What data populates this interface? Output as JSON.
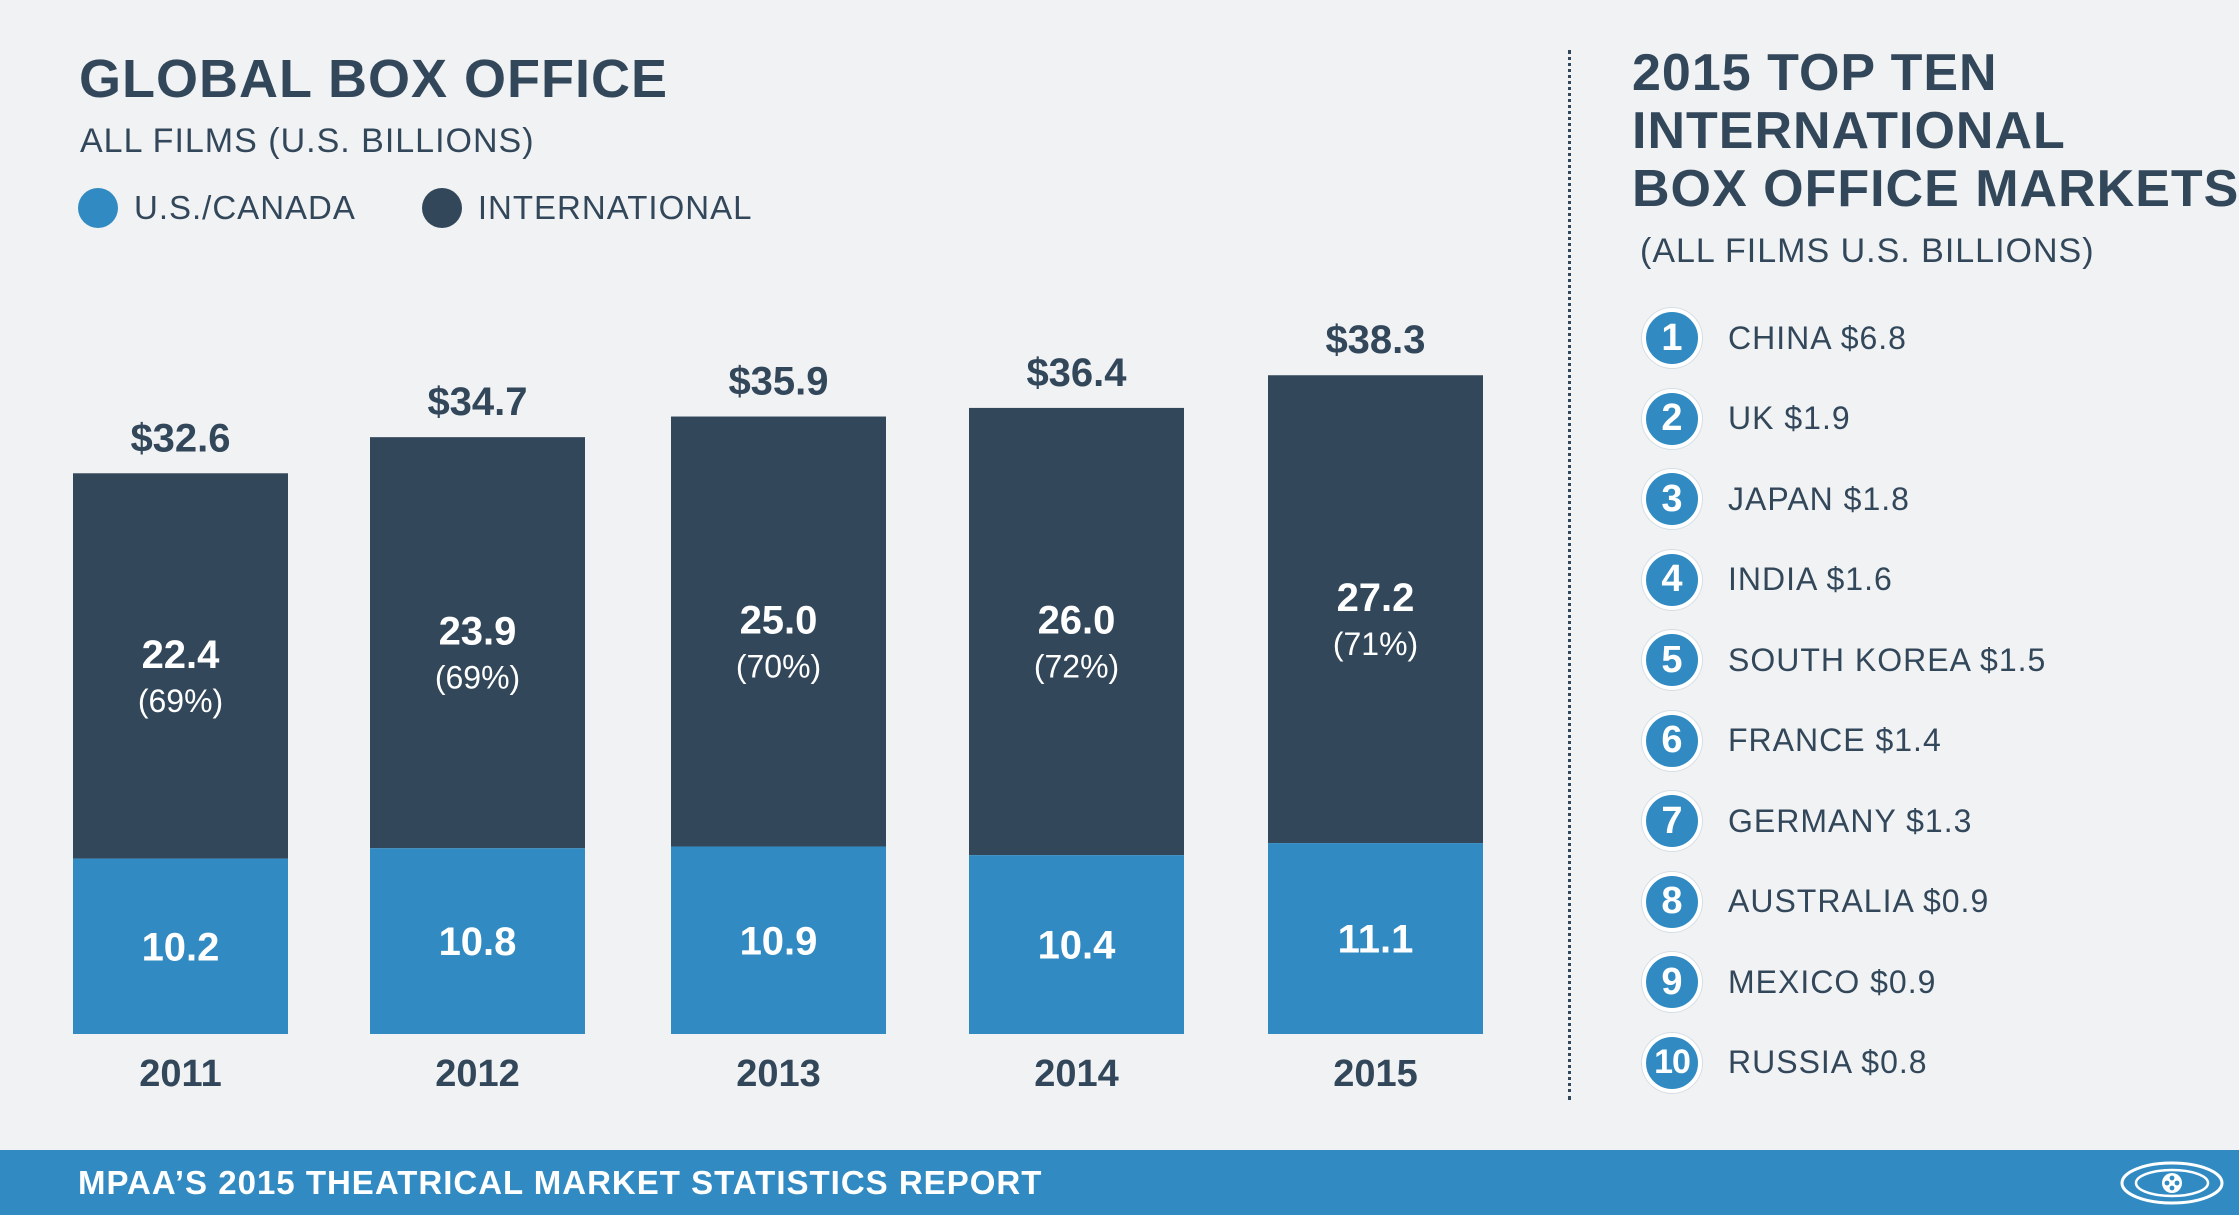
{
  "left_panel": {
    "title": "GLOBAL BOX OFFICE",
    "subtitle": "ALL FILMS (U.S. BILLIONS)",
    "legend": [
      {
        "label": "U.S./CANADA",
        "color": "#318bc2"
      },
      {
        "label": "INTERNATIONAL",
        "color": "#33475b"
      }
    ]
  },
  "chart_data": {
    "type": "bar",
    "stacked": true,
    "title": "GLOBAL BOX OFFICE",
    "subtitle": "ALL FILMS (U.S. BILLIONS)",
    "categories": [
      "2011",
      "2012",
      "2013",
      "2014",
      "2015"
    ],
    "series": [
      {
        "name": "U.S./CANADA",
        "color": "#318bc2",
        "values": [
          10.2,
          10.8,
          10.9,
          10.4,
          11.1
        ],
        "labels": [
          "10.2",
          "10.8",
          "10.9",
          "10.4",
          "11.1"
        ]
      },
      {
        "name": "INTERNATIONAL",
        "color": "#33475b",
        "values": [
          22.4,
          23.9,
          25.0,
          26.0,
          27.2
        ],
        "labels": [
          "22.4",
          "23.9",
          "25.0",
          "26.0",
          "27.2"
        ],
        "share_labels": [
          "(69%)",
          "(69%)",
          "(70%)",
          "(72%)",
          "(71%)"
        ]
      }
    ],
    "totals": [
      32.6,
      34.7,
      35.9,
      36.4,
      38.3
    ],
    "total_labels": [
      "$32.6",
      "$34.7",
      "$35.9",
      "$36.4",
      "$38.3"
    ],
    "legend_position": "top-left",
    "grid": false
  },
  "right_panel": {
    "title_lines": [
      "2015 TOP TEN",
      "INTERNATIONAL",
      "BOX OFFICE MARKETS"
    ],
    "subtitle": "(ALL FILMS U.S. BILLIONS)",
    "markets": [
      {
        "rank": "1",
        "label": "CHINA $6.8"
      },
      {
        "rank": "2",
        "label": "UK $1.9"
      },
      {
        "rank": "3",
        "label": "JAPAN $1.8"
      },
      {
        "rank": "4",
        "label": "INDIA $1.6"
      },
      {
        "rank": "5",
        "label": "SOUTH KOREA $1.5"
      },
      {
        "rank": "6",
        "label": "FRANCE $1.4"
      },
      {
        "rank": "7",
        "label": "GERMANY $1.3"
      },
      {
        "rank": "8",
        "label": "AUSTRALIA $0.9"
      },
      {
        "rank": "9",
        "label": "MEXICO $0.9"
      },
      {
        "rank": "10",
        "label": "RUSSIA $0.8"
      }
    ]
  },
  "footer": {
    "text": "MPAA’S 2015 THEATRICAL MARKET STATISTICS REPORT",
    "logo_icon": "film-reel-globe-icon"
  }
}
